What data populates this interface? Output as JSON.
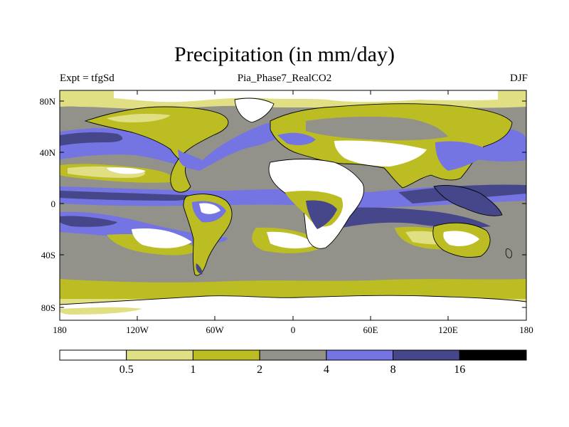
{
  "figure": {
    "title": "Precipitation (in mm/day)",
    "left_subtitle": "Expt = tfgSd",
    "center_subtitle": "Pia_Phase7_RealCO2",
    "right_subtitle": "DJF"
  },
  "axes": {
    "y_ticks": [
      "80N",
      "40N",
      "0",
      "40S",
      "80S"
    ],
    "x_ticks": [
      "180",
      "120W",
      "60W",
      "0",
      "60E",
      "120E",
      "180"
    ]
  },
  "colorbar": {
    "levels": [
      "0.5",
      "1",
      "2",
      "4",
      "8",
      "16"
    ],
    "colors": [
      "#ffffff",
      "#e0df84",
      "#bcbd22",
      "#92928a",
      "#7474e3",
      "#46468a",
      "#000000"
    ]
  }
}
